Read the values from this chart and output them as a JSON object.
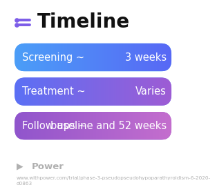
{
  "title": "Timeline",
  "title_fontsize": 20,
  "title_fontweight": "bold",
  "title_color": "#111111",
  "icon_color": "#7c5ce8",
  "background_color": "#ffffff",
  "bars": [
    {
      "label_left": "Screening ~",
      "label_right": "3 weeks",
      "color_left": "#4b9ef8",
      "color_right": "#5868f5"
    },
    {
      "label_left": "Treatment ~",
      "label_right": "Varies",
      "color_left": "#5b70f5",
      "color_right": "#9e5cd4"
    },
    {
      "label_left": "Follow ups ~",
      "label_right": "baseline and 52 weeks",
      "color_left": "#9055cc",
      "color_right": "#c46ece"
    }
  ],
  "bar_text_color": "#ffffff",
  "bar_text_fontsize": 10.5,
  "bar_rounding": 0.06,
  "footer_logo_text": "Power",
  "footer_logo_color": "#b0b0b0",
  "footer_url": "www.withpower.com/trial/phase-3-pseudopseudohypoparathyroidism-6-2020-\nd0863",
  "footer_fontsize": 5.2
}
